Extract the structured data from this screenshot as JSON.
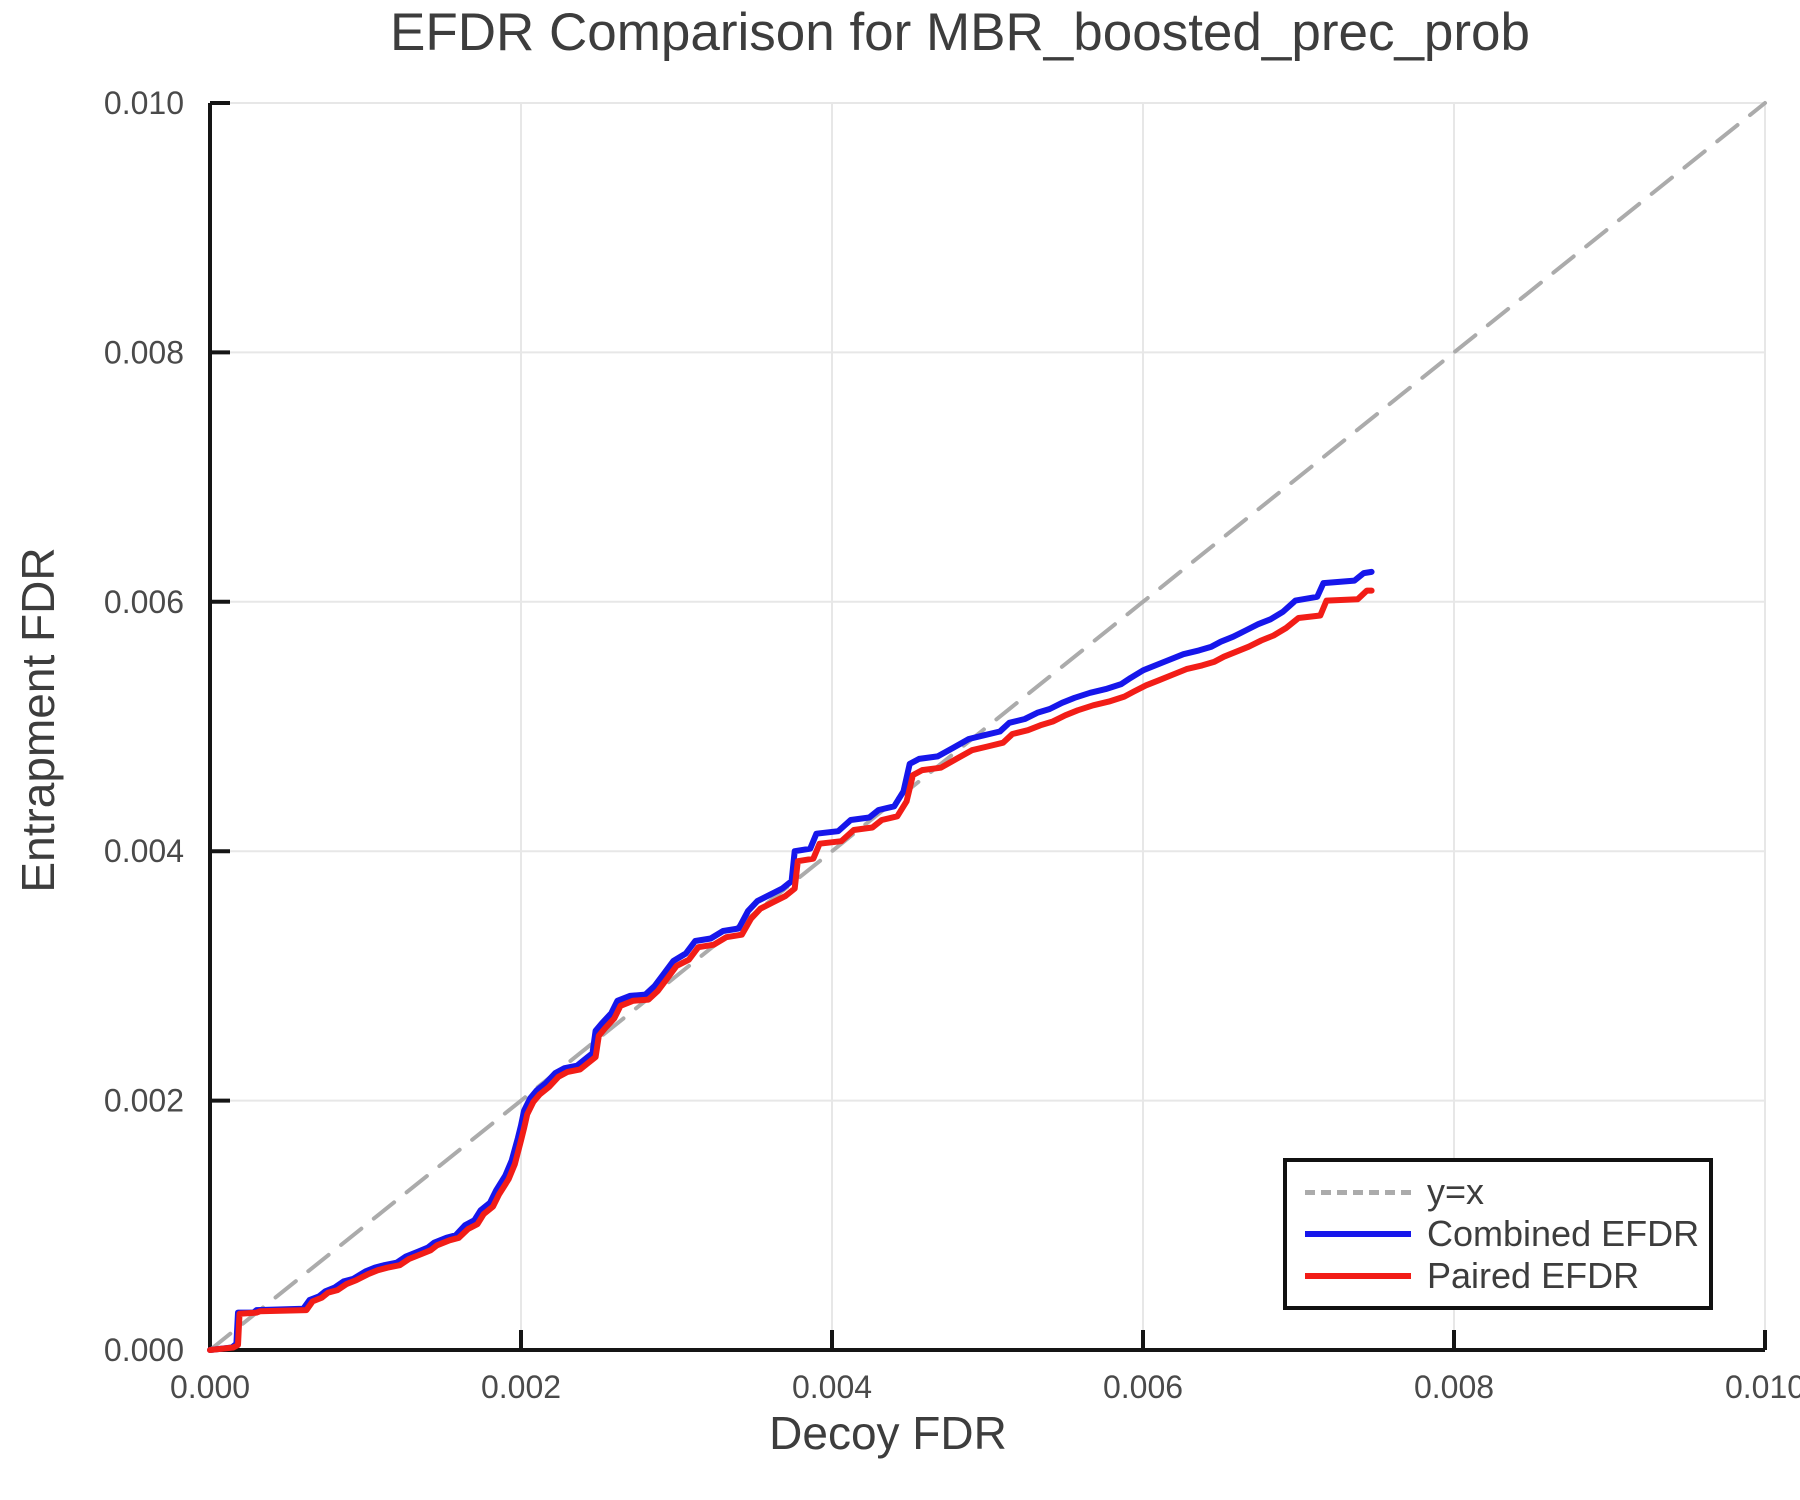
{
  "colors": {
    "identity_line": "#ababab",
    "combined_line": "#1616eb",
    "paired_line": "#f21d17",
    "grid": "#e7e7e7",
    "axis": "#151515",
    "label_text": "#3d3d3d",
    "tick_text": "#4a4a4a",
    "legend_border": "#111111",
    "background": "#ffffff"
  },
  "chart_data": {
    "type": "line",
    "title": "EFDR Comparison for MBR_boosted_prec_prob",
    "xlabel": "Decoy FDR",
    "ylabel": "Entrapment FDR",
    "xlim": [
      0,
      0.01
    ],
    "ylim": [
      0,
      0.01
    ],
    "x_ticks": [
      0,
      0.002,
      0.004,
      0.006,
      0.008,
      0.01
    ],
    "y_ticks": [
      0,
      0.002,
      0.004,
      0.006,
      0.008,
      0.01
    ],
    "x_tick_labels": [
      "0.000",
      "0.002",
      "0.004",
      "0.006",
      "0.008",
      "0.010"
    ],
    "y_tick_labels": [
      "0.000",
      "0.002",
      "0.004",
      "0.006",
      "0.008",
      "0.010"
    ],
    "grid": true,
    "legend_position": "lower right",
    "series": [
      {
        "name": "y=x",
        "color": "#ababab",
        "style": "dashed",
        "width": 4,
        "points": [
          [
            0,
            0
          ],
          [
            0.01,
            0.01
          ]
        ]
      },
      {
        "name": "Combined EFDR",
        "color": "#1616eb",
        "style": "solid",
        "width": 6,
        "points": [
          [
            0.0,
            0.0
          ],
          [
            0.00014,
            2e-05
          ],
          [
            0.00017,
            5e-05
          ],
          [
            0.00018,
            0.0003
          ],
          [
            0.00028,
            0.0003
          ],
          [
            0.0003,
            0.00032
          ],
          [
            0.0006,
            0.00033
          ],
          [
            0.00064,
            0.0004
          ],
          [
            0.0007,
            0.00043
          ],
          [
            0.00074,
            0.00047
          ],
          [
            0.0008,
            0.0005
          ],
          [
            0.00086,
            0.00055
          ],
          [
            0.00092,
            0.00057
          ],
          [
            0.001,
            0.00063
          ],
          [
            0.00106,
            0.00066
          ],
          [
            0.00112,
            0.00068
          ],
          [
            0.0012,
            0.0007
          ],
          [
            0.00126,
            0.00075
          ],
          [
            0.00134,
            0.00079
          ],
          [
            0.0014,
            0.00082
          ],
          [
            0.00144,
            0.00086
          ],
          [
            0.00152,
            0.0009
          ],
          [
            0.00158,
            0.00092
          ],
          [
            0.00164,
            0.001
          ],
          [
            0.0017,
            0.00104
          ],
          [
            0.00174,
            0.00112
          ],
          [
            0.0018,
            0.00118
          ],
          [
            0.00184,
            0.00128
          ],
          [
            0.0019,
            0.0014
          ],
          [
            0.00194,
            0.00152
          ],
          [
            0.00198,
            0.0017
          ],
          [
            0.002,
            0.0018
          ],
          [
            0.00202,
            0.00192
          ],
          [
            0.00206,
            0.00202
          ],
          [
            0.0021,
            0.00208
          ],
          [
            0.00216,
            0.00214
          ],
          [
            0.00222,
            0.00222
          ],
          [
            0.00228,
            0.00226
          ],
          [
            0.00236,
            0.00228
          ],
          [
            0.0024,
            0.00232
          ],
          [
            0.00246,
            0.00238
          ],
          [
            0.00248,
            0.00256
          ],
          [
            0.00252,
            0.00262
          ],
          [
            0.00258,
            0.0027
          ],
          [
            0.00262,
            0.0028
          ],
          [
            0.0027,
            0.00284
          ],
          [
            0.0028,
            0.00285
          ],
          [
            0.00286,
            0.00292
          ],
          [
            0.00292,
            0.00302
          ],
          [
            0.00298,
            0.00312
          ],
          [
            0.00306,
            0.00318
          ],
          [
            0.00312,
            0.00328
          ],
          [
            0.00322,
            0.0033
          ],
          [
            0.0033,
            0.00336
          ],
          [
            0.0034,
            0.00338
          ],
          [
            0.00346,
            0.00352
          ],
          [
            0.00352,
            0.0036
          ],
          [
            0.0036,
            0.00365
          ],
          [
            0.00368,
            0.0037
          ],
          [
            0.00374,
            0.00376
          ],
          [
            0.00376,
            0.004
          ],
          [
            0.00386,
            0.00402
          ],
          [
            0.0039,
            0.00414
          ],
          [
            0.00404,
            0.00416
          ],
          [
            0.00412,
            0.00425
          ],
          [
            0.00424,
            0.00427
          ],
          [
            0.0043,
            0.00433
          ],
          [
            0.0044,
            0.00436
          ],
          [
            0.00446,
            0.00448
          ],
          [
            0.0045,
            0.0047
          ],
          [
            0.00456,
            0.00474
          ],
          [
            0.00468,
            0.00476
          ],
          [
            0.00478,
            0.00483
          ],
          [
            0.00488,
            0.0049
          ],
          [
            0.00498,
            0.00493
          ],
          [
            0.00508,
            0.00496
          ],
          [
            0.00514,
            0.00503
          ],
          [
            0.00524,
            0.00506
          ],
          [
            0.00532,
            0.00511
          ],
          [
            0.0054,
            0.00514
          ],
          [
            0.00548,
            0.00519
          ],
          [
            0.00556,
            0.00523
          ],
          [
            0.00566,
            0.00527
          ],
          [
            0.00576,
            0.0053
          ],
          [
            0.00586,
            0.00534
          ],
          [
            0.00592,
            0.00539
          ],
          [
            0.006,
            0.00545
          ],
          [
            0.00608,
            0.00549
          ],
          [
            0.00616,
            0.00553
          ],
          [
            0.00626,
            0.00558
          ],
          [
            0.00636,
            0.00561
          ],
          [
            0.00644,
            0.00564
          ],
          [
            0.0065,
            0.00568
          ],
          [
            0.00658,
            0.00572
          ],
          [
            0.00666,
            0.00577
          ],
          [
            0.00674,
            0.00582
          ],
          [
            0.00682,
            0.00586
          ],
          [
            0.0069,
            0.00592
          ],
          [
            0.00698,
            0.00601
          ],
          [
            0.00712,
            0.00604
          ],
          [
            0.00716,
            0.00615
          ],
          [
            0.00736,
            0.00617
          ],
          [
            0.00742,
            0.00623
          ],
          [
            0.00747,
            0.00624
          ]
        ]
      },
      {
        "name": "Paired EFDR",
        "color": "#f21d17",
        "style": "solid",
        "width": 6,
        "points": [
          [
            0.0,
            0.0
          ],
          [
            0.00015,
            2e-05
          ],
          [
            0.00018,
            4e-05
          ],
          [
            0.00019,
            0.00029
          ],
          [
            0.0003,
            0.0003
          ],
          [
            0.00032,
            0.00031
          ],
          [
            0.00062,
            0.00032
          ],
          [
            0.00066,
            0.00039
          ],
          [
            0.00072,
            0.00042
          ],
          [
            0.00076,
            0.00046
          ],
          [
            0.00082,
            0.00048
          ],
          [
            0.00088,
            0.00053
          ],
          [
            0.00094,
            0.00056
          ],
          [
            0.00102,
            0.00061
          ],
          [
            0.00108,
            0.00064
          ],
          [
            0.00114,
            0.00066
          ],
          [
            0.00122,
            0.00068
          ],
          [
            0.00128,
            0.00073
          ],
          [
            0.00136,
            0.00077
          ],
          [
            0.00142,
            0.0008
          ],
          [
            0.00146,
            0.00084
          ],
          [
            0.00154,
            0.00088
          ],
          [
            0.0016,
            0.0009
          ],
          [
            0.00166,
            0.00097
          ],
          [
            0.00172,
            0.00101
          ],
          [
            0.00176,
            0.00109
          ],
          [
            0.00182,
            0.00115
          ],
          [
            0.00186,
            0.00125
          ],
          [
            0.00192,
            0.00137
          ],
          [
            0.00196,
            0.00149
          ],
          [
            0.002,
            0.00168
          ],
          [
            0.00202,
            0.00178
          ],
          [
            0.00204,
            0.00189
          ],
          [
            0.00208,
            0.00199
          ],
          [
            0.00212,
            0.00205
          ],
          [
            0.00218,
            0.00211
          ],
          [
            0.00224,
            0.00219
          ],
          [
            0.0023,
            0.00223
          ],
          [
            0.00238,
            0.00225
          ],
          [
            0.00242,
            0.00229
          ],
          [
            0.00248,
            0.00235
          ],
          [
            0.0025,
            0.00252
          ],
          [
            0.00254,
            0.00258
          ],
          [
            0.0026,
            0.00266
          ],
          [
            0.00264,
            0.00276
          ],
          [
            0.00272,
            0.0028
          ],
          [
            0.00282,
            0.00281
          ],
          [
            0.00288,
            0.00288
          ],
          [
            0.00294,
            0.00298
          ],
          [
            0.003,
            0.00308
          ],
          [
            0.00308,
            0.00313
          ],
          [
            0.00314,
            0.00323
          ],
          [
            0.00324,
            0.00325
          ],
          [
            0.00332,
            0.00331
          ],
          [
            0.00342,
            0.00333
          ],
          [
            0.00348,
            0.00346
          ],
          [
            0.00354,
            0.00354
          ],
          [
            0.00362,
            0.00359
          ],
          [
            0.0037,
            0.00364
          ],
          [
            0.00376,
            0.0037
          ],
          [
            0.00378,
            0.00392
          ],
          [
            0.00388,
            0.00394
          ],
          [
            0.00392,
            0.00406
          ],
          [
            0.00406,
            0.00408
          ],
          [
            0.00414,
            0.00417
          ],
          [
            0.00426,
            0.00419
          ],
          [
            0.00432,
            0.00425
          ],
          [
            0.00442,
            0.00428
          ],
          [
            0.00448,
            0.0044
          ],
          [
            0.00452,
            0.00461
          ],
          [
            0.00458,
            0.00465
          ],
          [
            0.0047,
            0.00467
          ],
          [
            0.0048,
            0.00474
          ],
          [
            0.0049,
            0.00481
          ],
          [
            0.005,
            0.00484
          ],
          [
            0.0051,
            0.00487
          ],
          [
            0.00516,
            0.00494
          ],
          [
            0.00526,
            0.00497
          ],
          [
            0.00534,
            0.00501
          ],
          [
            0.00542,
            0.00504
          ],
          [
            0.0055,
            0.00509
          ],
          [
            0.00558,
            0.00513
          ],
          [
            0.00568,
            0.00517
          ],
          [
            0.00578,
            0.0052
          ],
          [
            0.00588,
            0.00524
          ],
          [
            0.00594,
            0.00528
          ],
          [
            0.00602,
            0.00533
          ],
          [
            0.0061,
            0.00537
          ],
          [
            0.00618,
            0.00541
          ],
          [
            0.00628,
            0.00546
          ],
          [
            0.00638,
            0.00549
          ],
          [
            0.00646,
            0.00552
          ],
          [
            0.00652,
            0.00556
          ],
          [
            0.0066,
            0.0056
          ],
          [
            0.00668,
            0.00564
          ],
          [
            0.00676,
            0.00569
          ],
          [
            0.00684,
            0.00573
          ],
          [
            0.00692,
            0.00579
          ],
          [
            0.007,
            0.00587
          ],
          [
            0.00714,
            0.00589
          ],
          [
            0.00718,
            0.00601
          ],
          [
            0.00738,
            0.00602
          ],
          [
            0.00744,
            0.00609
          ],
          [
            0.00747,
            0.00609
          ]
        ]
      }
    ]
  }
}
